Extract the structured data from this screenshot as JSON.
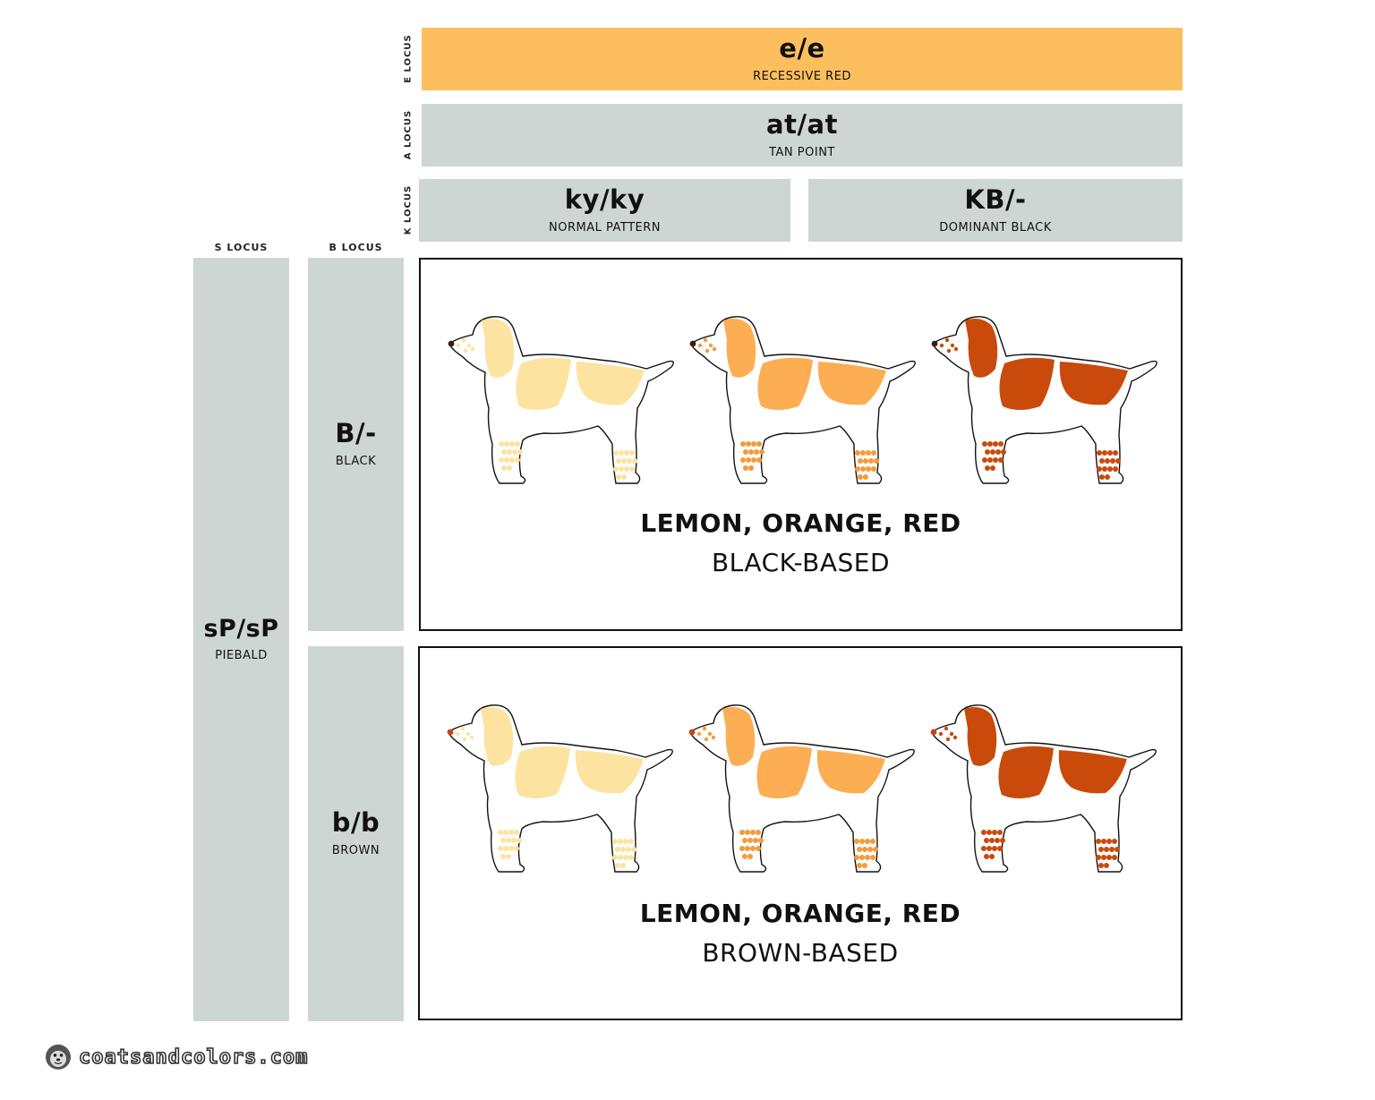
{
  "loci": {
    "e": {
      "label": "E LOCUS",
      "genotype": "e/e",
      "name": "RECESSIVE RED"
    },
    "a": {
      "label": "A LOCUS",
      "genotype": "at/at",
      "name": "TAN POINT"
    },
    "k": {
      "label": "K LOCUS",
      "options": [
        {
          "genotype": "ky/ky",
          "name": "NORMAL PATTERN"
        },
        {
          "genotype": "KB/-",
          "name": "DOMINANT BLACK"
        }
      ]
    },
    "s": {
      "label": "S LOCUS",
      "genotype": "sP/sP",
      "name": "PIEBALD"
    },
    "b": {
      "label": "B LOCUS",
      "options": [
        {
          "genotype": "B/-",
          "name": "BLACK"
        },
        {
          "genotype": "b/b",
          "name": "BROWN"
        }
      ]
    }
  },
  "panels": [
    {
      "title": "LEMON, ORANGE, RED",
      "subtitle": "BLACK-BASED",
      "nose_color": "#3a1e14"
    },
    {
      "title": "LEMON, ORANGE, RED",
      "subtitle": "BROWN-BASED",
      "nose_color": "#c8431a"
    }
  ],
  "dog_colors": [
    {
      "coat": "#fde3a0",
      "dots": "#fde3a0"
    },
    {
      "coat": "#fdad52",
      "dots": "#f49b3a"
    },
    {
      "coat": "#c94a0b",
      "dots": "#c94a0b"
    }
  ],
  "footer": {
    "site": "coatsandcolors.com",
    "icon": "seal-logo-icon"
  }
}
